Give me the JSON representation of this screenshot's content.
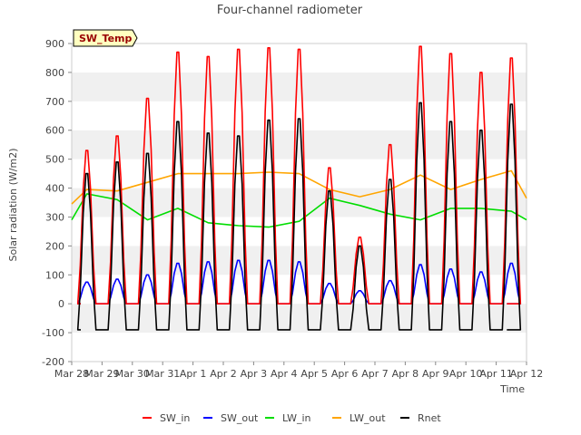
{
  "chart_data": {
    "type": "line",
    "title": "Four-channel radiometer",
    "xlabel": "Time",
    "ylabel": "Solar radiation (W/m2)",
    "badge": "SW_Temp",
    "xlim": [
      "2024-03-28",
      "2024-04-12"
    ],
    "ylim": [
      -200,
      900
    ],
    "y_ticks": [
      -200,
      -100,
      0,
      100,
      200,
      300,
      400,
      500,
      600,
      700,
      800,
      900
    ],
    "x_ticks": [
      {
        "date": "2024-03-28",
        "label": "Mar 28"
      },
      {
        "date": "2024-03-29",
        "label": "Mar 29"
      },
      {
        "date": "2024-03-30",
        "label": "Mar 30"
      },
      {
        "date": "2024-03-31",
        "label": "Mar 31"
      },
      {
        "date": "2024-04-01",
        "label": "Apr 1"
      },
      {
        "date": "2024-04-02",
        "label": "Apr 2"
      },
      {
        "date": "2024-04-03",
        "label": "Apr 3"
      },
      {
        "date": "2024-04-04",
        "label": "Apr 4"
      },
      {
        "date": "2024-04-05",
        "label": "Apr 5"
      },
      {
        "date": "2024-04-06",
        "label": "Apr 6"
      },
      {
        "date": "2024-04-07",
        "label": "Apr 7"
      },
      {
        "date": "2024-04-08",
        "label": "Apr 8"
      },
      {
        "date": "2024-04-09",
        "label": "Apr 9"
      },
      {
        "date": "2024-04-10",
        "label": "Apr 10"
      },
      {
        "date": "2024-04-11",
        "label": "Apr 11"
      },
      {
        "date": "2024-04-12",
        "label": "Apr 12"
      }
    ],
    "grid": "horizontal bands",
    "legend_position": "bottom",
    "series": [
      {
        "name": "SW_in",
        "color": "#ff0000",
        "x": [
          "2024-03-28 12:00",
          "2024-03-29 12:00",
          "2024-03-30 12:00",
          "2024-03-31 12:00",
          "2024-04-01 12:00",
          "2024-04-02 12:00",
          "2024-04-03 12:00",
          "2024-04-04 12:00",
          "2024-04-05 12:00",
          "2024-04-06 12:00",
          "2024-04-07 12:00",
          "2024-04-08 12:00",
          "2024-04-09 12:00",
          "2024-04-10 12:00",
          "2024-04-11 12:00"
        ],
        "values": [
          530,
          580,
          710,
          870,
          855,
          880,
          885,
          880,
          470,
          230,
          550,
          890,
          865,
          800,
          850
        ]
      },
      {
        "name": "SW_out",
        "color": "#0000ff",
        "x": [
          "2024-03-28 12:00",
          "2024-03-29 12:00",
          "2024-03-30 12:00",
          "2024-03-31 12:00",
          "2024-04-01 12:00",
          "2024-04-02 12:00",
          "2024-04-03 12:00",
          "2024-04-04 12:00",
          "2024-04-05 12:00",
          "2024-04-06 12:00",
          "2024-04-07 12:00",
          "2024-04-08 12:00",
          "2024-04-09 12:00",
          "2024-04-10 12:00",
          "2024-04-11 12:00"
        ],
        "values": [
          75,
          85,
          100,
          140,
          145,
          150,
          150,
          145,
          70,
          45,
          80,
          135,
          120,
          110,
          140
        ]
      },
      {
        "name": "LW_in",
        "color": "#00dd00",
        "x": [
          "2024-03-28 00:00",
          "2024-03-28 12:00",
          "2024-03-29 12:00",
          "2024-03-30 12:00",
          "2024-03-31 12:00",
          "2024-04-01 12:00",
          "2024-04-02 12:00",
          "2024-04-03 12:00",
          "2024-04-04 12:00",
          "2024-04-05 12:00",
          "2024-04-06 12:00",
          "2024-04-07 12:00",
          "2024-04-08 12:00",
          "2024-04-09 12:00",
          "2024-04-10 12:00",
          "2024-04-11 12:00",
          "2024-04-12 00:00"
        ],
        "values": [
          290,
          380,
          360,
          290,
          330,
          280,
          270,
          265,
          285,
          365,
          340,
          310,
          290,
          330,
          330,
          320,
          290
        ]
      },
      {
        "name": "LW_out",
        "color": "#ffa500",
        "x": [
          "2024-03-28 00:00",
          "2024-03-28 12:00",
          "2024-03-29 12:00",
          "2024-03-30 12:00",
          "2024-03-31 12:00",
          "2024-04-01 12:00",
          "2024-04-02 12:00",
          "2024-04-03 12:00",
          "2024-04-04 12:00",
          "2024-04-05 12:00",
          "2024-04-06 12:00",
          "2024-04-07 12:00",
          "2024-04-08 12:00",
          "2024-04-09 12:00",
          "2024-04-10 12:00",
          "2024-04-11 12:00",
          "2024-04-12 00:00"
        ],
        "values": [
          345,
          395,
          390,
          420,
          450,
          450,
          450,
          455,
          450,
          395,
          370,
          395,
          445,
          395,
          430,
          460,
          365
        ]
      },
      {
        "name": "Rnet",
        "color": "#000000",
        "x": [
          "2024-03-28 12:00",
          "2024-03-29 12:00",
          "2024-03-30 12:00",
          "2024-03-31 12:00",
          "2024-04-01 12:00",
          "2024-04-02 12:00",
          "2024-04-03 12:00",
          "2024-04-04 12:00",
          "2024-04-05 12:00",
          "2024-04-06 12:00",
          "2024-04-07 12:00",
          "2024-04-08 12:00",
          "2024-04-09 12:00",
          "2024-04-10 12:00",
          "2024-04-11 12:00"
        ],
        "values": [
          450,
          490,
          520,
          630,
          590,
          580,
          635,
          640,
          390,
          200,
          430,
          695,
          630,
          600,
          690
        ]
      }
    ],
    "night_values": {
      "SW_in": 0,
      "SW_out": 0,
      "Rnet": -90
    }
  }
}
